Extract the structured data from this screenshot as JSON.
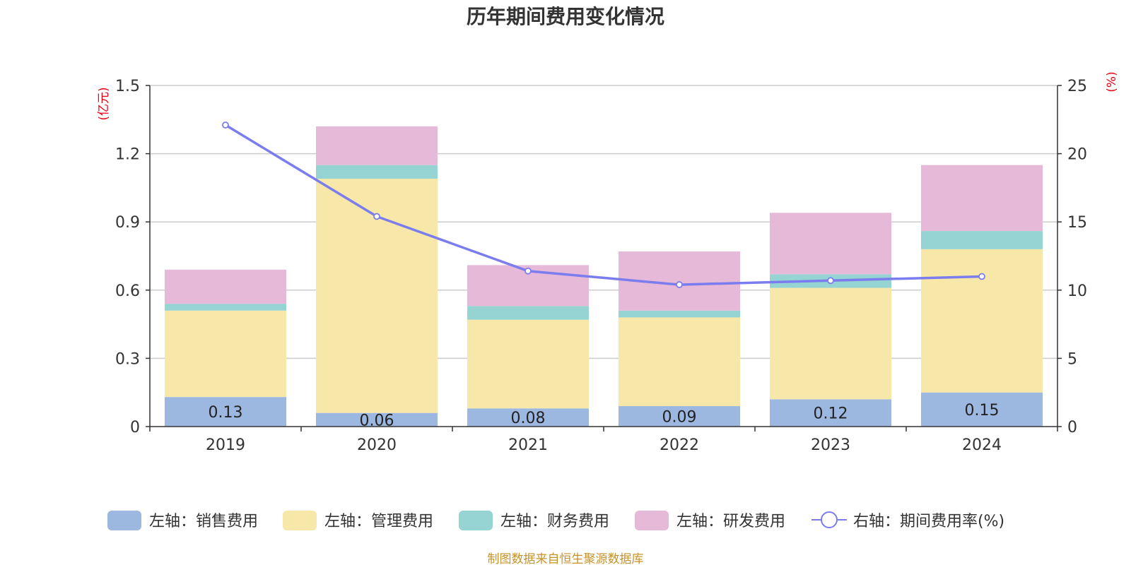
{
  "chart_data": {
    "type": "bar",
    "title": "历年期间费用变化情况",
    "categories": [
      "2019",
      "2020",
      "2021",
      "2022",
      "2023",
      "2024"
    ],
    "left_axis": {
      "unit": "(亿元)",
      "ylim": [
        0,
        1.5
      ],
      "ticks": [
        "0",
        "0.3",
        "0.6",
        "0.9",
        "1.2",
        "1.5"
      ]
    },
    "right_axis": {
      "unit": "(%)",
      "ylim": [
        0,
        25
      ],
      "ticks": [
        "0",
        "5",
        "10",
        "15",
        "20",
        "25"
      ]
    },
    "series": [
      {
        "name": "左轴：销售费用",
        "type": "bar",
        "stack": true,
        "color": "#9db8e0",
        "values": [
          0.13,
          0.06,
          0.08,
          0.09,
          0.12,
          0.15
        ],
        "labels": [
          "0.13",
          "0.06",
          "0.08",
          "0.09",
          "0.12",
          "0.15"
        ]
      },
      {
        "name": "左轴：管理费用",
        "type": "bar",
        "stack": true,
        "color": "#f7e7a8",
        "values": [
          0.38,
          1.03,
          0.39,
          0.39,
          0.49,
          0.63
        ]
      },
      {
        "name": "左轴：财务费用",
        "type": "bar",
        "stack": true,
        "color": "#96d3d3",
        "values": [
          0.03,
          0.06,
          0.06,
          0.03,
          0.06,
          0.08
        ]
      },
      {
        "name": "左轴：研发费用",
        "type": "bar",
        "stack": true,
        "color": "#e7b9d8",
        "values": [
          0.15,
          0.17,
          0.18,
          0.26,
          0.27,
          0.29
        ]
      },
      {
        "name": "右轴：期间费用率(%)",
        "type": "line",
        "color": "#7b7cee",
        "values": [
          22.1,
          15.4,
          11.4,
          10.4,
          10.7,
          11.0
        ]
      }
    ],
    "source": "制图数据来自恒生聚源数据库"
  }
}
